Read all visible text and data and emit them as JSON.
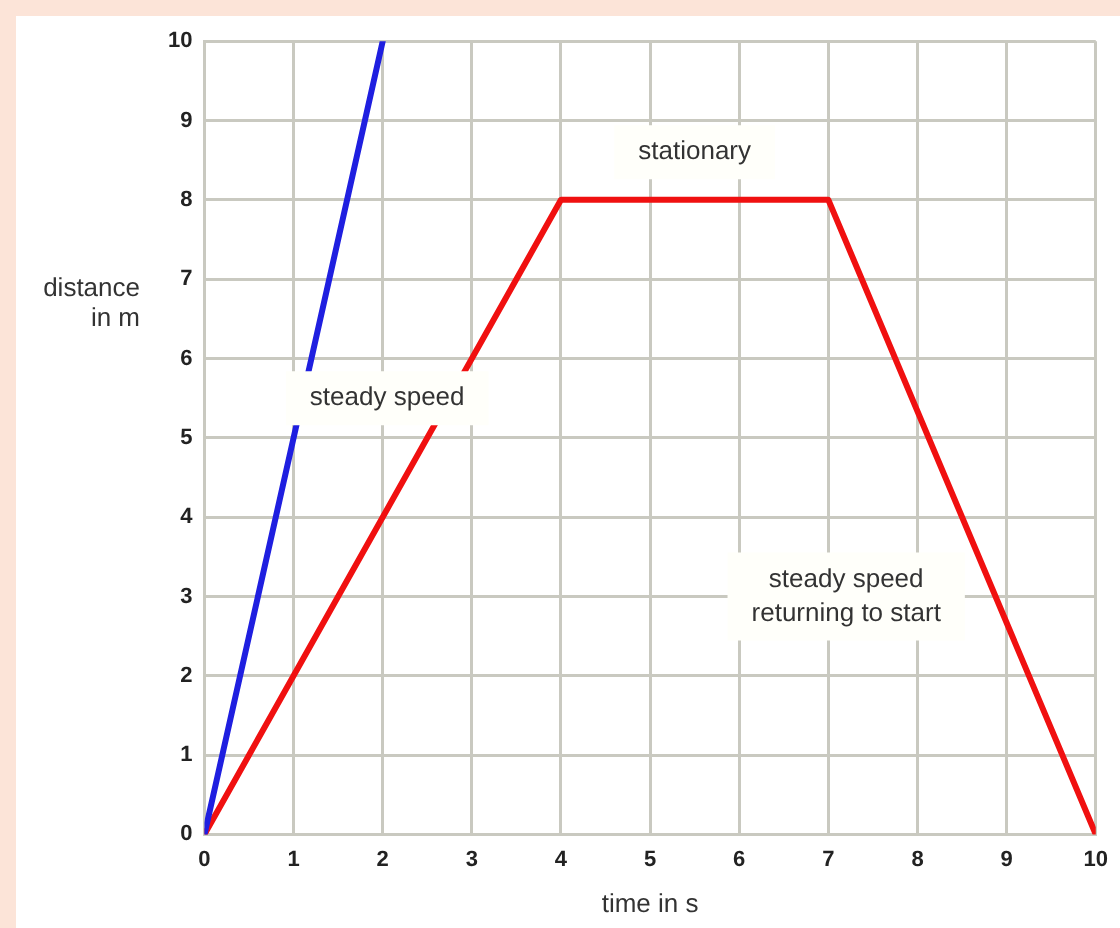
{
  "chart_data": {
    "type": "line",
    "xlabel": "time in s",
    "ylabel": "distance in m",
    "xlim": [
      0,
      10
    ],
    "ylim": [
      0,
      10
    ],
    "xticks": [
      0,
      1,
      2,
      3,
      4,
      5,
      6,
      7,
      8,
      9,
      10
    ],
    "yticks": [
      0,
      1,
      2,
      3,
      4,
      5,
      6,
      7,
      8,
      9,
      10
    ],
    "grid": true,
    "legend": false,
    "marker": "none",
    "line_style": "solid",
    "series": [
      {
        "color": "#1f1fe0",
        "x": [
          0,
          2
        ],
        "values": [
          0,
          10
        ]
      },
      {
        "color": "#f01010",
        "x": [
          0,
          4,
          7,
          10
        ],
        "values": [
          0,
          8,
          8,
          0
        ]
      }
    ],
    "annotations": [
      "stationary",
      "steady speed",
      "steady speed\nreturning to start"
    ]
  }
}
